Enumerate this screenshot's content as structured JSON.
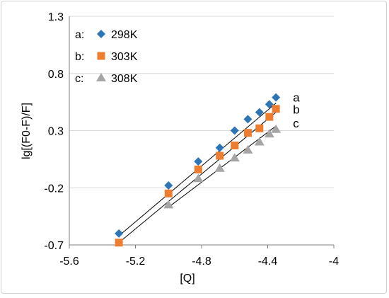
{
  "chart_data": {
    "type": "scatter",
    "xlabel": "[Q]",
    "ylabel": "lg[(F0-F)/F]",
    "xlim": [
      -5.6,
      -4.0
    ],
    "ylim": [
      -0.7,
      1.3
    ],
    "xticks": [
      "-5.6",
      "-5.2",
      "-4.8",
      "-4.4",
      "-4"
    ],
    "yticks": [
      "-0.7",
      "-0.2",
      "0.3",
      "0.8",
      "1.3"
    ],
    "grid": {
      "horizontal": true,
      "vertical": false
    },
    "legend_position": "top-left",
    "series": [
      {
        "name": "298K",
        "legend_prefix": "a:",
        "end_label": "a",
        "marker": "diamond",
        "color": "#2E75B6",
        "x": [
          -5.3,
          -5.0,
          -4.82,
          -4.69,
          -4.6,
          -4.52,
          -4.45,
          -4.39,
          -4.35
        ],
        "y": [
          -0.6,
          -0.18,
          0.03,
          0.15,
          0.3,
          0.4,
          0.46,
          0.53,
          0.59
        ],
        "fit": {
          "x": [
            -5.3,
            -4.35
          ],
          "y": [
            -0.62,
            0.54
          ]
        }
      },
      {
        "name": "303K",
        "legend_prefix": "b:",
        "end_label": "b",
        "marker": "square",
        "color": "#ED7D31",
        "x": [
          -5.3,
          -5.0,
          -4.82,
          -4.69,
          -4.6,
          -4.52,
          -4.45,
          -4.39,
          -4.35
        ],
        "y": [
          -0.68,
          -0.25,
          -0.04,
          0.08,
          0.17,
          0.28,
          0.32,
          0.42,
          0.49
        ],
        "fit": {
          "x": [
            -5.3,
            -4.35
          ],
          "y": [
            -0.68,
            0.46
          ]
        }
      },
      {
        "name": "308K",
        "legend_prefix": "c:",
        "end_label": "c",
        "marker": "triangle",
        "color": "#A5A5A5",
        "x": [
          -5.0,
          -4.82,
          -4.69,
          -4.6,
          -4.52,
          -4.45,
          -4.39,
          -4.35
        ],
        "y": [
          -0.35,
          -0.12,
          -0.03,
          0.06,
          0.13,
          0.2,
          0.27,
          0.31
        ],
        "fit": {
          "x": [
            -5.0,
            -4.35
          ],
          "y": [
            -0.37,
            0.34
          ]
        }
      }
    ]
  }
}
